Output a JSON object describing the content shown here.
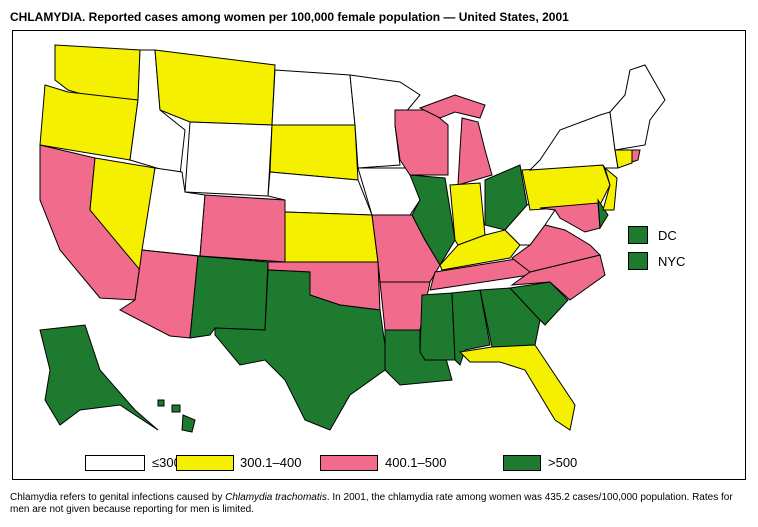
{
  "title": "CHLAMYDIA. Reported cases among women per 100,000 female population — United States, 2001",
  "colors": {
    "le300": "#ffffff",
    "300_400": "#f5f000",
    "400_500": "#f06b8c",
    "gt500": "#1d7a2e"
  },
  "legend": [
    {
      "label": "≤300",
      "category": "le300"
    },
    {
      "label": "300.1–400",
      "category": "300_400"
    },
    {
      "label": "400.1–500",
      "category": "400_500"
    },
    {
      "label": ">500",
      "category": "gt500"
    }
  ],
  "side_legend": [
    {
      "label": "DC",
      "category": "gt500"
    },
    {
      "label": "NYC",
      "category": "gt500"
    }
  ],
  "states": {
    "WA": "300_400",
    "OR": "300_400",
    "CA": "400_500",
    "NV": "300_400",
    "ID": "le300",
    "MT": "300_400",
    "WY": "le300",
    "UT": "le300",
    "AZ": "400_500",
    "CO": "400_500",
    "NM": "gt500",
    "ND": "le300",
    "SD": "300_400",
    "NE": "le300",
    "KS": "300_400",
    "OK": "400_500",
    "TX": "gt500",
    "MN": "le300",
    "IA": "le300",
    "MO": "400_500",
    "AR": "400_500",
    "LA": "gt500",
    "WI": "400_500",
    "IL": "gt500",
    "MI": "400_500",
    "IN": "300_400",
    "OH": "gt500",
    "KY": "300_400",
    "TN": "400_500",
    "MS": "gt500",
    "AL": "gt500",
    "GA": "gt500",
    "FL": "300_400",
    "SC": "gt500",
    "NC": "400_500",
    "VA": "400_500",
    "WV": "le300",
    "PA": "300_400",
    "MD": "400_500",
    "DE": "gt500",
    "NJ": "300_400",
    "NY": "le300",
    "CT": "300_400",
    "RI": "400_500",
    "NE_ENG": "le300",
    "AK": "gt500",
    "HI": "gt500"
  },
  "footnote_pre": "Chlamydia refers to genital infections caused by ",
  "footnote_italic": "Chlamydia trachomatis",
  "footnote_post": ". In 2001, the chlamydia rate among women was 435.2 cases/100,000 population. Rates for men are not given because reporting for men is limited."
}
